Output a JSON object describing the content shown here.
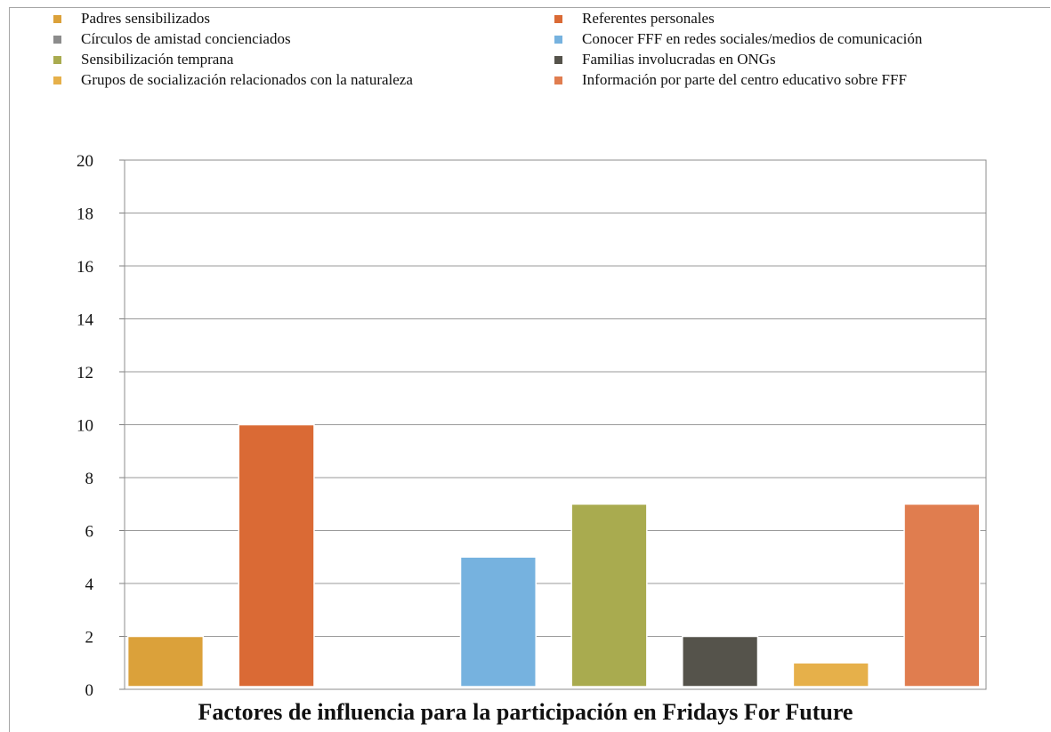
{
  "chart_data": {
    "type": "bar",
    "title": "Factores de influencia para la participación en Fridays For Future",
    "xlabel": "",
    "ylabel": "",
    "ylim": [
      0,
      20
    ],
    "yticks": [
      0,
      2,
      4,
      6,
      8,
      10,
      12,
      14,
      16,
      18,
      20
    ],
    "grid": true,
    "legend_position": "top",
    "series": [
      {
        "name": "Padres sensibilizados",
        "value": 2,
        "color": "#dba13a"
      },
      {
        "name": "Referentes personales",
        "value": 10,
        "color": "#da6a35"
      },
      {
        "name": "Círculos de amistad concienciados",
        "value": 0,
        "color": "#8c8c8c"
      },
      {
        "name": "Conocer FFF en redes sociales/medios de comunicación",
        "value": 5,
        "color": "#76b2df"
      },
      {
        "name": "Sensibilización temprana",
        "value": 7,
        "color": "#a9ab4f"
      },
      {
        "name": "Familias involucradas en ONGs",
        "value": 2,
        "color": "#55534b"
      },
      {
        "name": "Grupos de socialización relacionados con la naturaleza",
        "value": 1,
        "color": "#e6b04a"
      },
      {
        "name": "Información por parte del centro educativo sobre FFF",
        "value": 7,
        "color": "#e07d4f"
      }
    ]
  }
}
